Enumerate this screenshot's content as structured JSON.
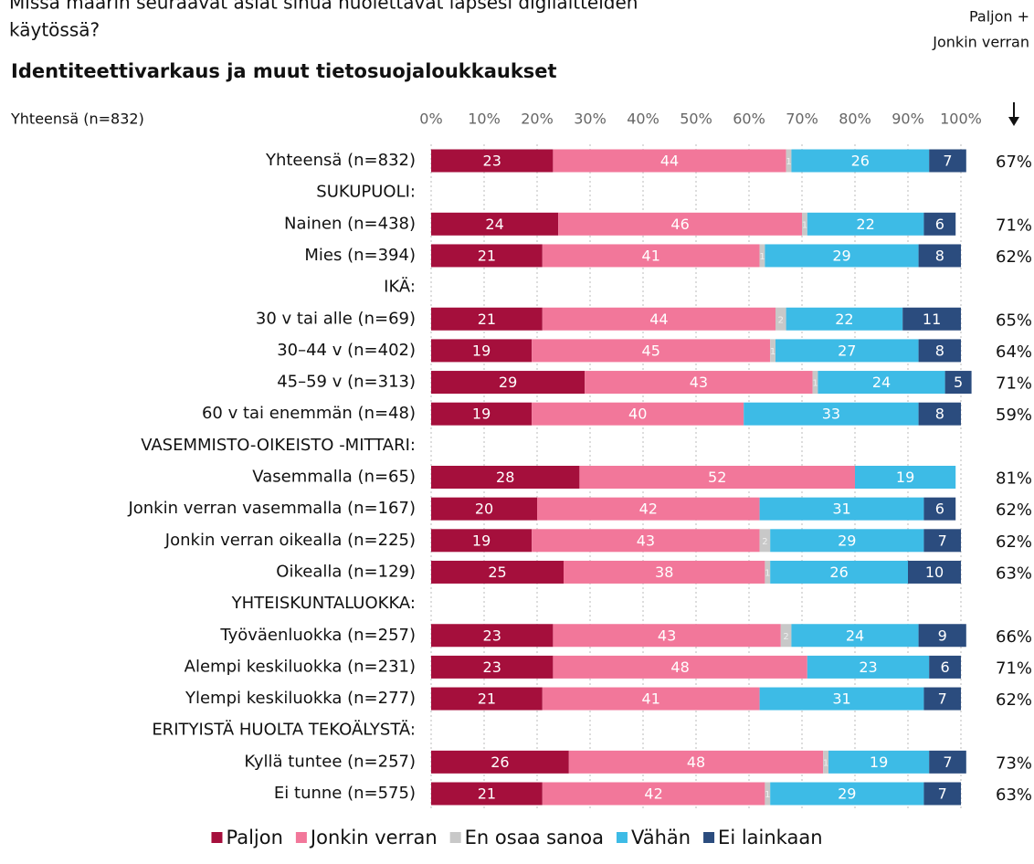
{
  "chart_data": {
    "type": "stacked_barh",
    "title": [
      "Missä määrin seuraavat asiat sinua huolettavat lapsesi digilaitteiden",
      "käytössä?"
    ],
    "subtitle": "Identiteettivarkaus  ja muut tietosuojaloukkaukset",
    "axis_note": "Yhteensä (n=832)",
    "categories": [
      "Yhteensä (n=832)",
      "SUKUPUOLI:",
      "Nainen (n=438)",
      "Mies (n=394)",
      "IKÄ:",
      "30 v tai alle (n=69)",
      "30–44 v (n=402)",
      "45–59 v (n=313)",
      "60 v tai enemmän (n=48)",
      "VASEMMISTO-OIKEISTO -MITTARI:",
      "Vasemmalla (n=65)",
      "Jonkin verran vasemmalla (n=167)",
      "Jonkin verran oikealla (n=225)",
      "Oikealla (n=129)",
      "YHTEISKUNTALUOKKA:",
      "Työväenluokka (n=257)",
      "Alempi keskiluokka (n=231)",
      "Ylempi keskiluokka (n=277)",
      "ERITYISTÄ HUOLTA TEKOÄLYSTÄ:",
      "Kyllä tuntee (n=257)",
      "Ei tunne (n=575)"
    ],
    "series": [
      {
        "name": "Paljon",
        "color": "#a50f3c",
        "values": [
          23,
          null,
          24,
          21,
          null,
          21,
          19,
          29,
          19,
          null,
          28,
          20,
          19,
          25,
          null,
          23,
          23,
          21,
          null,
          26,
          21
        ]
      },
      {
        "name": "Jonkin verran",
        "color": "#f2779a",
        "values": [
          44,
          null,
          46,
          41,
          null,
          44,
          45,
          43,
          40,
          null,
          52,
          42,
          43,
          38,
          null,
          43,
          48,
          41,
          null,
          48,
          42
        ]
      },
      {
        "name": "En osaa sanoa",
        "color": "#c8c8c8",
        "values": [
          1,
          null,
          1,
          1,
          null,
          2,
          1,
          1,
          0,
          null,
          0,
          0,
          2,
          1,
          null,
          2,
          0,
          0,
          null,
          1,
          1
        ]
      },
      {
        "name": "Vähän",
        "color": "#3dbbe6",
        "values": [
          26,
          null,
          22,
          29,
          null,
          22,
          27,
          24,
          33,
          null,
          19,
          31,
          29,
          26,
          null,
          24,
          23,
          31,
          null,
          19,
          29
        ]
      },
      {
        "name": "Ei lainkaan",
        "color": "#2b4c7e",
        "values": [
          7,
          null,
          6,
          8,
          null,
          11,
          8,
          5,
          8,
          null,
          0,
          6,
          7,
          10,
          null,
          9,
          6,
          7,
          null,
          7,
          7
        ]
      }
    ],
    "totals": {
      "name": [
        "Paljon +",
        "Jonkin verran"
      ],
      "values": [
        67,
        null,
        71,
        62,
        null,
        65,
        64,
        71,
        59,
        null,
        81,
        62,
        62,
        63,
        null,
        66,
        71,
        62,
        null,
        73,
        63
      ],
      "value_labels": [
        "67%",
        null,
        "71%",
        "62%",
        null,
        "65%",
        "64%",
        "71%",
        "59%",
        null,
        "81%",
        "62%",
        "62%",
        "63%",
        null,
        "66%",
        "71%",
        "62%",
        null,
        "73%",
        "63%"
      ]
    },
    "xlim": [
      0,
      100
    ],
    "xticks": [
      {
        "value": 0,
        "label": "0%"
      },
      {
        "value": 10,
        "label": "10%"
      },
      {
        "value": 20,
        "label": "20%"
      },
      {
        "value": 30,
        "label": "30%"
      },
      {
        "value": 40,
        "label": "40%"
      },
      {
        "value": 50,
        "label": "50%"
      },
      {
        "value": 60,
        "label": "60%"
      },
      {
        "value": 70,
        "label": "70%"
      },
      {
        "value": 80,
        "label": "80%"
      },
      {
        "value": 90,
        "label": "90%"
      },
      {
        "value": 100,
        "label": "100%"
      }
    ],
    "grid": true,
    "legend": "bottom"
  }
}
